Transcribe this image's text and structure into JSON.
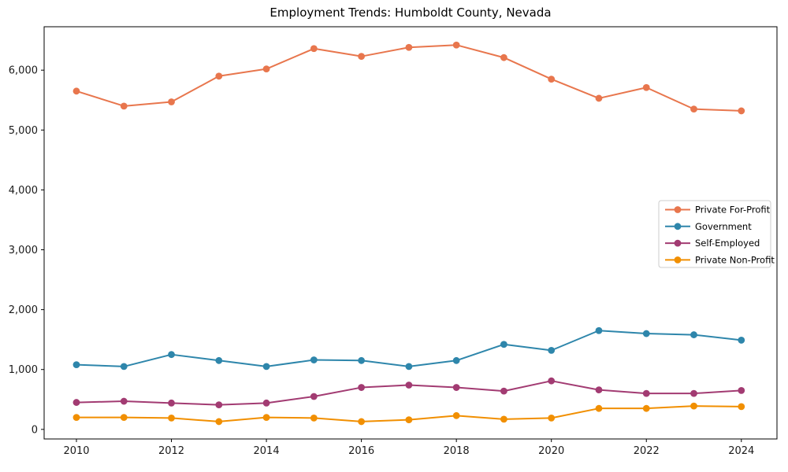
{
  "chart_data": {
    "type": "line",
    "title": "Employment Trends: Humboldt County, Nevada",
    "xlabel": "",
    "ylabel": "",
    "x": [
      2010,
      2011,
      2012,
      2013,
      2014,
      2015,
      2016,
      2017,
      2018,
      2019,
      2020,
      2021,
      2022,
      2023,
      2024
    ],
    "series": [
      {
        "name": "Private For-Profit",
        "color": "#E8764D",
        "values": [
          5650,
          5400,
          5470,
          5900,
          6020,
          6360,
          6230,
          6380,
          6420,
          6210,
          5850,
          5530,
          5710,
          5350,
          5320
        ]
      },
      {
        "name": "Government",
        "color": "#2E86AB",
        "values": [
          1080,
          1050,
          1250,
          1150,
          1050,
          1160,
          1150,
          1050,
          1150,
          1420,
          1320,
          1650,
          1600,
          1580,
          1490
        ]
      },
      {
        "name": "Self-Employed",
        "color": "#A23B72",
        "values": [
          450,
          470,
          440,
          410,
          440,
          550,
          700,
          740,
          700,
          640,
          810,
          660,
          600,
          600,
          650
        ]
      },
      {
        "name": "Private Non-Profit",
        "color": "#F18F01",
        "values": [
          200,
          200,
          190,
          130,
          200,
          190,
          130,
          160,
          230,
          170,
          190,
          350,
          350,
          390,
          380
        ]
      }
    ],
    "xlim": [
      2009.32,
      2024.75
    ],
    "ylim": [
      -160,
      6725
    ],
    "x_ticks": [
      2010,
      2012,
      2014,
      2016,
      2018,
      2020,
      2022,
      2024
    ],
    "x_tick_labels": [
      "2010",
      "2012",
      "2014",
      "2016",
      "2018",
      "2020",
      "2022",
      "2024"
    ],
    "y_ticks": [
      0,
      1000,
      2000,
      3000,
      4000,
      5000,
      6000
    ],
    "y_tick_labels": [
      "0",
      "1,000",
      "2,000",
      "3,000",
      "4,000",
      "5,000",
      "6,000"
    ],
    "grid": false,
    "legend_position": "center right",
    "marker": "circle",
    "line_width": 2,
    "marker_radius": 4.4
  },
  "frame": {
    "background": "#ffffff",
    "spine_color": "#000000",
    "tick_label_color": "#1a1a1a",
    "legend_border_color": "#cccccc"
  }
}
